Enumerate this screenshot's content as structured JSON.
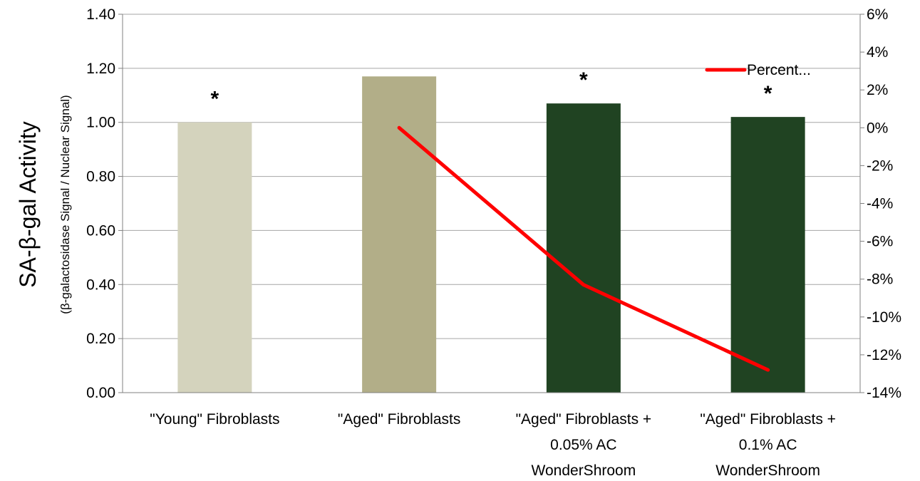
{
  "chart_data": {
    "type": "bar",
    "categories": [
      [
        "\"Young\" Fibroblasts"
      ],
      [
        "\"Aged\" Fibroblasts"
      ],
      [
        "\"Aged\" Fibroblasts +",
        "0.05% AC",
        "WonderShroom"
      ],
      [
        "\"Aged\" Fibroblasts +",
        "0.1% AC",
        "WonderShroom"
      ]
    ],
    "bars": {
      "values": [
        1.0,
        1.17,
        1.07,
        1.02
      ],
      "colors": [
        "#d4d3bd",
        "#b2ae88",
        "#204322",
        "#204322"
      ]
    },
    "significance": [
      "*",
      "",
      "*",
      "*"
    ],
    "line_series": {
      "name": "Percent...",
      "color": "#ff0000",
      "points": [
        {
          "category_index": 1,
          "value": 0.0
        },
        {
          "category_index": 2,
          "value": -8.3
        },
        {
          "category_index": 3,
          "value": -12.8
        }
      ]
    },
    "ylabel": "SA-β-gal Activity",
    "ylabel_sub": "(β-galactosidase Signal / Nuclear Signal)",
    "ylim": [
      0,
      1.4
    ],
    "y_ticks": [
      "0.00",
      "0.20",
      "0.40",
      "0.60",
      "0.80",
      "1.00",
      "1.20",
      "1.40"
    ],
    "y2lim": [
      -14,
      6
    ],
    "y2_ticks": [
      "-14%",
      "-12%",
      "-10%",
      "-8%",
      "-6%",
      "-4%",
      "-2%",
      "0%",
      "2%",
      "4%",
      "6%"
    ],
    "grid": true,
    "legend_position": "top-right"
  }
}
